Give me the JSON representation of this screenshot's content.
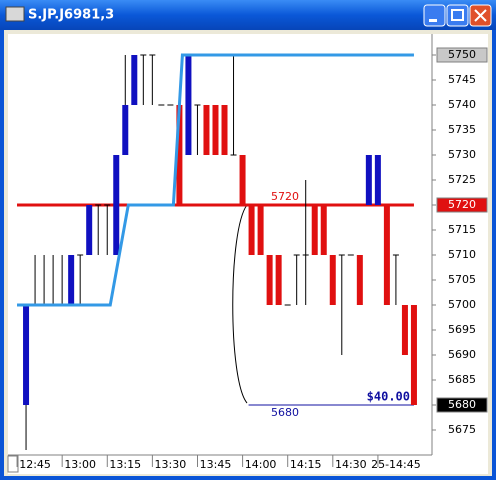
{
  "window": {
    "title": "S.JP.J6981,3"
  },
  "chart_data": {
    "type": "ohlc",
    "x": [
      762,
      765,
      768,
      771,
      774,
      777,
      780,
      783,
      786,
      789,
      792,
      795,
      798,
      801,
      804,
      807,
      810,
      813,
      816,
      819,
      822,
      825,
      828,
      831,
      834,
      837,
      840,
      843,
      846,
      849,
      852,
      855,
      858,
      861,
      864,
      867,
      870,
      873,
      876,
      879,
      882,
      885,
      888,
      891
    ],
    "open": [
      5680,
      5700,
      5700,
      5700,
      5700,
      5700,
      5710,
      5710,
      5720,
      5720,
      5710,
      5730,
      5740,
      5750,
      5750,
      5740,
      5740,
      5740,
      5730,
      5740,
      5740,
      5740,
      5740,
      5730,
      5730,
      5720,
      5720,
      5710,
      5710,
      5700,
      5710,
      5710,
      5720,
      5720,
      5710,
      5710,
      5710,
      5710,
      5720,
      5720,
      5720,
      5710,
      5700,
      5700
    ],
    "high": [
      5700,
      5710,
      5710,
      5710,
      5710,
      5710,
      5710,
      5720,
      5720,
      5720,
      5730,
      5750,
      5750,
      5750,
      5750,
      5740,
      5740,
      5740,
      5750,
      5740,
      5740,
      5740,
      5740,
      5750,
      5730,
      5720,
      5720,
      5710,
      5710,
      5700,
      5710,
      5725,
      5720,
      5720,
      5710,
      5710,
      5710,
      5710,
      5730,
      5730,
      5720,
      5710,
      5700,
      5700
    ],
    "low": [
      5671,
      5700,
      5700,
      5700,
      5700,
      5700,
      5700,
      5710,
      5710,
      5710,
      5710,
      5730,
      5740,
      5740,
      5740,
      5740,
      5740,
      5720,
      5730,
      5730,
      5730,
      5730,
      5730,
      5730,
      5720,
      5710,
      5710,
      5700,
      5700,
      5700,
      5700,
      5700,
      5710,
      5710,
      5700,
      5690,
      5710,
      5700,
      5720,
      5720,
      5700,
      5700,
      5690,
      5680
    ],
    "close": [
      5700,
      5700,
      5700,
      5700,
      5700,
      5710,
      5710,
      5720,
      5720,
      5720,
      5730,
      5740,
      5750,
      5750,
      5750,
      5740,
      5740,
      5720,
      5750,
      5740,
      5730,
      5730,
      5730,
      5730,
      5720,
      5710,
      5710,
      5700,
      5700,
      5700,
      5710,
      5710,
      5710,
      5710,
      5700,
      5710,
      5710,
      5700,
      5730,
      5730,
      5700,
      5710,
      5690,
      5680
    ],
    "up_color": "#1010c0",
    "down_color": "#e01010",
    "flat_color": "#000000",
    "xlim": [
      756,
      897
    ],
    "xticks": [
      {
        "value": 765,
        "label": "12:45"
      },
      {
        "value": 780,
        "label": "13:00"
      },
      {
        "value": 795,
        "label": "13:15"
      },
      {
        "value": 810,
        "label": "13:30"
      },
      {
        "value": 825,
        "label": "13:45"
      },
      {
        "value": 840,
        "label": "14:00"
      },
      {
        "value": 855,
        "label": "14:15"
      },
      {
        "value": 870,
        "label": "14:30"
      },
      {
        "value": 885,
        "label": "25-14:45"
      }
    ],
    "ylim": [
      5670,
      5754
    ],
    "yticks": [
      5675,
      5680,
      5685,
      5690,
      5695,
      5700,
      5705,
      5710,
      5715,
      5720,
      5725,
      5730,
      5735,
      5740,
      5745,
      5750
    ],
    "stop_line": {
      "color": "#3399e6",
      "x": [
        759,
        790,
        796,
        811,
        814,
        891
      ],
      "values": [
        5700,
        5700,
        5720,
        5720,
        5750,
        5750
      ]
    },
    "levels": [
      {
        "value": 5720,
        "color": "#e01010",
        "x": [
          759,
          891
        ]
      },
      {
        "value": 5680,
        "color": "#1010a0",
        "x": [
          836,
          891
        ],
        "annotation": "$40.00"
      }
    ],
    "price_marks": [
      {
        "value": 5750,
        "color": "#c8c8c8",
        "text_color": "#000000"
      },
      {
        "value": 5720,
        "color": "#e01010",
        "text_color": "#ffffff"
      },
      {
        "value": 5680,
        "color": "#000000",
        "text_color": "#ffffff"
      }
    ]
  }
}
